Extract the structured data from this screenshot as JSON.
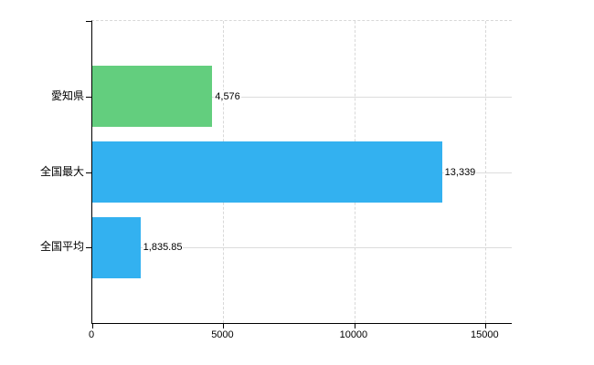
{
  "chart_data": {
    "type": "bar",
    "orientation": "horizontal",
    "title": "",
    "xlabel": "",
    "ylabel": "",
    "categories": [
      "愛知県",
      "全国最大",
      "全国平均"
    ],
    "values": [
      4576,
      13339,
      1835.85
    ],
    "value_labels": [
      "4,576",
      "13,339",
      "1,835.85"
    ],
    "bar_colors": [
      "#63ce7e",
      "#33b1f0",
      "#33b1f0"
    ],
    "xticks": [
      0,
      5000,
      10000,
      15000
    ],
    "xtick_labels": [
      "0",
      "5000",
      "10000",
      "15000"
    ],
    "xlim": [
      0,
      16000
    ],
    "grid": true,
    "legend": "none",
    "gridline_color": "#d8d8d8",
    "category_line_color": "#dcdcdc",
    "axis_color": "#000000",
    "text_color": "#000000",
    "background_color": "#ffffff"
  }
}
